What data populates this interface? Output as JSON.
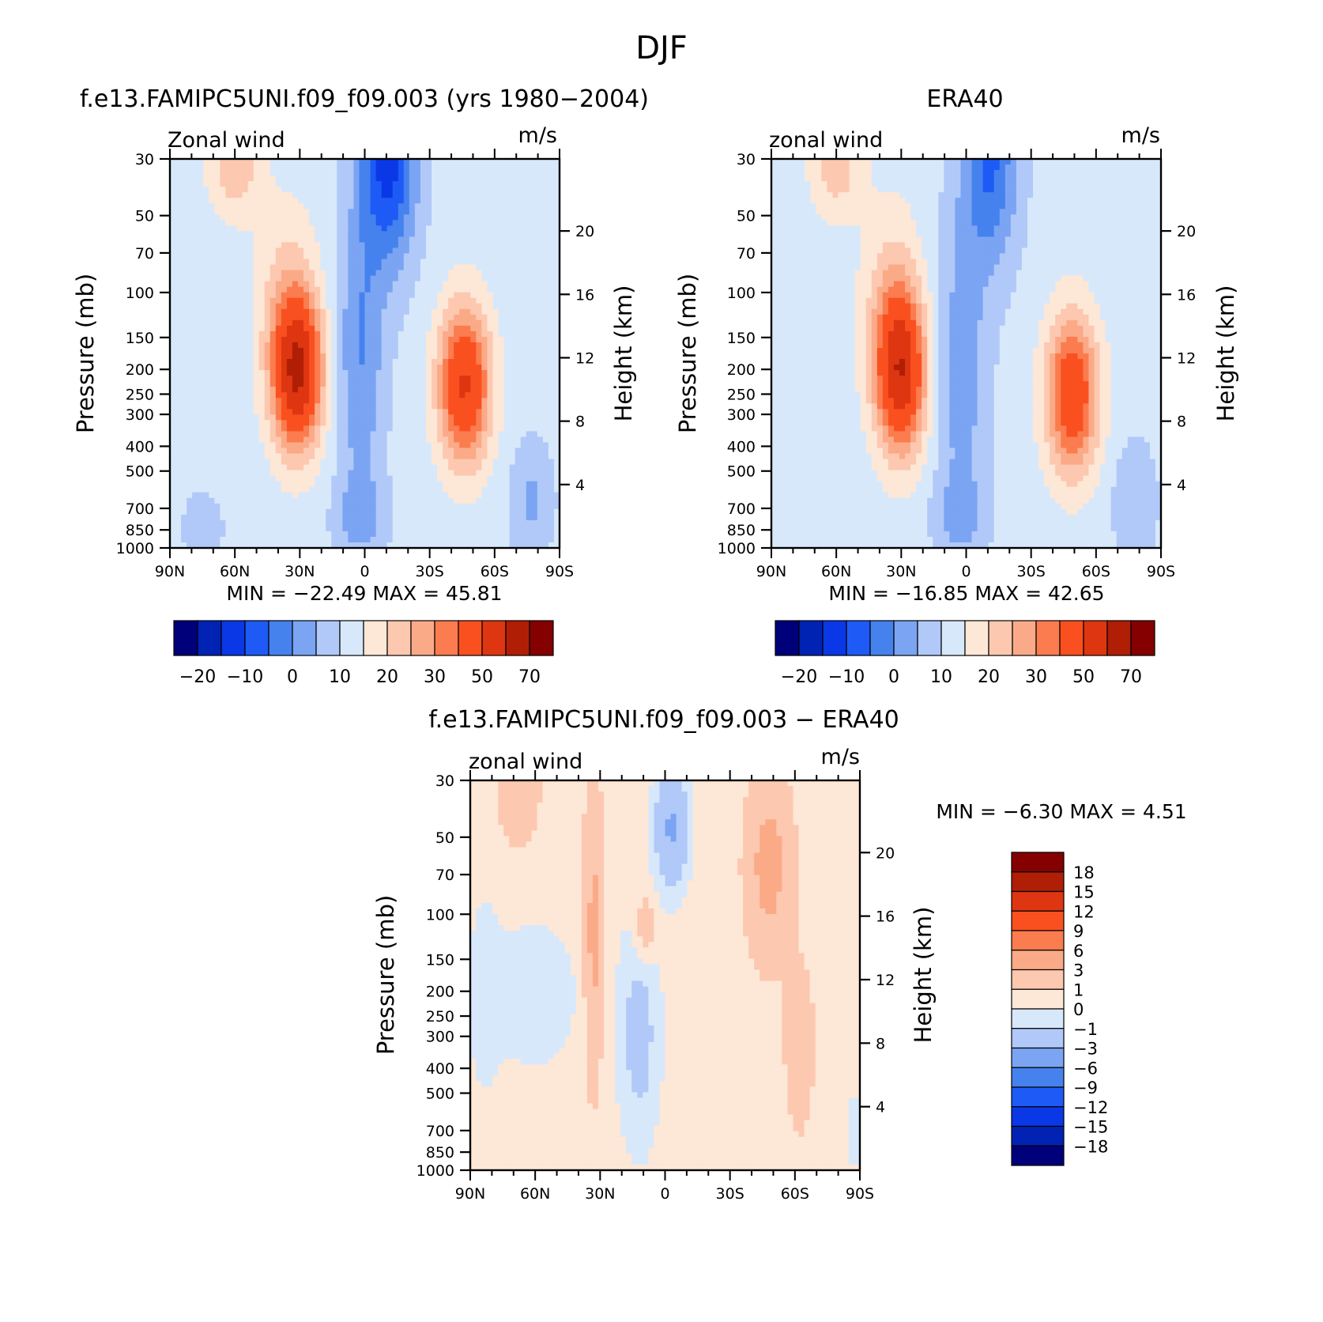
{
  "page": {
    "title": "DJF"
  },
  "tick_labels": {
    "pressure": [
      "30",
      "50",
      "70",
      "100",
      "150",
      "200",
      "250",
      "300",
      "400",
      "500",
      "700",
      "850",
      "1000"
    ],
    "height": [
      "20",
      "16",
      "12",
      "8",
      "4"
    ],
    "latitude": [
      "90N",
      "60N",
      "30N",
      "0",
      "30S",
      "60S",
      "90S"
    ]
  },
  "chart_data": [
    {
      "id": "model",
      "type": "contour",
      "title": "f.e13.FAMIPC5UNI.f09_f09.003 (yrs 1980−2004)",
      "left_label": "Zonal wind",
      "right_label": "m/s",
      "ylabel": "Pressure (mb)",
      "y2label": "Height (km)",
      "stats_text": "MIN =  −22.49   MAX =    45.81",
      "min": -22.49,
      "max": 45.81,
      "x_range": [
        "90N",
        "90S"
      ],
      "y_range_mb": [
        30,
        1000
      ],
      "y2_range_km": [
        0,
        24
      ],
      "contour_levels": [
        -25,
        -20,
        -15,
        -10,
        -5,
        0,
        5,
        10,
        15,
        20,
        25,
        30,
        40,
        50,
        60,
        70
      ],
      "colorbar_labels": [
        "−20",
        "−10",
        "0",
        "10",
        "20",
        "30",
        "50",
        "70"
      ],
      "features": [
        {
          "name": "NH subtropical jet",
          "lat": 31,
          "p": 200,
          "value": 45.81
        },
        {
          "name": "SH subtropical jet",
          "lat": -45,
          "p": 250,
          "value": 38
        },
        {
          "name": "tropical easterlies",
          "lat": -12,
          "p": 30,
          "value": -22.49
        }
      ]
    },
    {
      "id": "era40",
      "type": "contour",
      "title": "ERA40",
      "left_label": "zonal wind",
      "right_label": "m/s",
      "ylabel": "Pressure (mb)",
      "y2label": "Height (km)",
      "stats_text": "MIN =  −16.85   MAX =    42.65",
      "min": -16.85,
      "max": 42.65,
      "x_range": [
        "90N",
        "90S"
      ],
      "y_range_mb": [
        30,
        1000
      ],
      "y2_range_km": [
        0,
        24
      ],
      "contour_levels": [
        -25,
        -20,
        -15,
        -10,
        -5,
        0,
        5,
        10,
        15,
        20,
        25,
        30,
        40,
        50,
        60,
        70
      ],
      "colorbar_labels": [
        "−20",
        "−10",
        "0",
        "10",
        "20",
        "30",
        "50",
        "70"
      ],
      "features": [
        {
          "name": "NH subtropical jet",
          "lat": 30,
          "p": 200,
          "value": 42.65
        },
        {
          "name": "SH subtropical jet",
          "lat": -48,
          "p": 250,
          "value": 36
        },
        {
          "name": "tropical easterlies",
          "lat": -12,
          "p": 30,
          "value": -16.85
        }
      ]
    },
    {
      "id": "difference",
      "type": "contour",
      "title": "f.e13.FAMIPC5UNI.f09_f09.003 − ERA40",
      "left_label": "zonal wind",
      "right_label": "m/s",
      "ylabel": "Pressure (mb)",
      "y2label": "Height (km)",
      "stats_text": "MIN =    −6.30   MAX =     4.51",
      "min": -6.3,
      "max": 4.51,
      "x_range": [
        "90N",
        "90S"
      ],
      "y_range_mb": [
        30,
        1000
      ],
      "y2_range_km": [
        0,
        24
      ],
      "contour_levels": [
        -18,
        -15,
        -12,
        -9,
        -6,
        -3,
        -1,
        0,
        1,
        3,
        6,
        9,
        12,
        15,
        18
      ],
      "colorbar_labels": [
        "18",
        "15",
        "12",
        "9",
        "6",
        "3",
        "1",
        "0",
        "−1",
        "−3",
        "−6",
        "−9",
        "−12",
        "−15",
        "−18"
      ]
    }
  ],
  "colors": {
    "seq16": [
      "#00007a",
      "#0023b4",
      "#0a38e6",
      "#1e5af5",
      "#4682ee",
      "#7ba4f3",
      "#b0c9f8",
      "#d8e8fb",
      "#fde7d6",
      "#fdc8b0",
      "#fbaa88",
      "#fb7c4e",
      "#fa5020",
      "#dd3610",
      "#b01e06",
      "#850000"
    ],
    "diff16": [
      "#00007a",
      "#0023b4",
      "#0a38e6",
      "#1e5af5",
      "#4682ee",
      "#7ba4f3",
      "#b0c9f8",
      "#d8e8fb",
      "#fde7d6",
      "#fdc8b0",
      "#fbaa88",
      "#fb7c4e",
      "#fa5020",
      "#dd3610",
      "#b01e06",
      "#850000"
    ]
  }
}
